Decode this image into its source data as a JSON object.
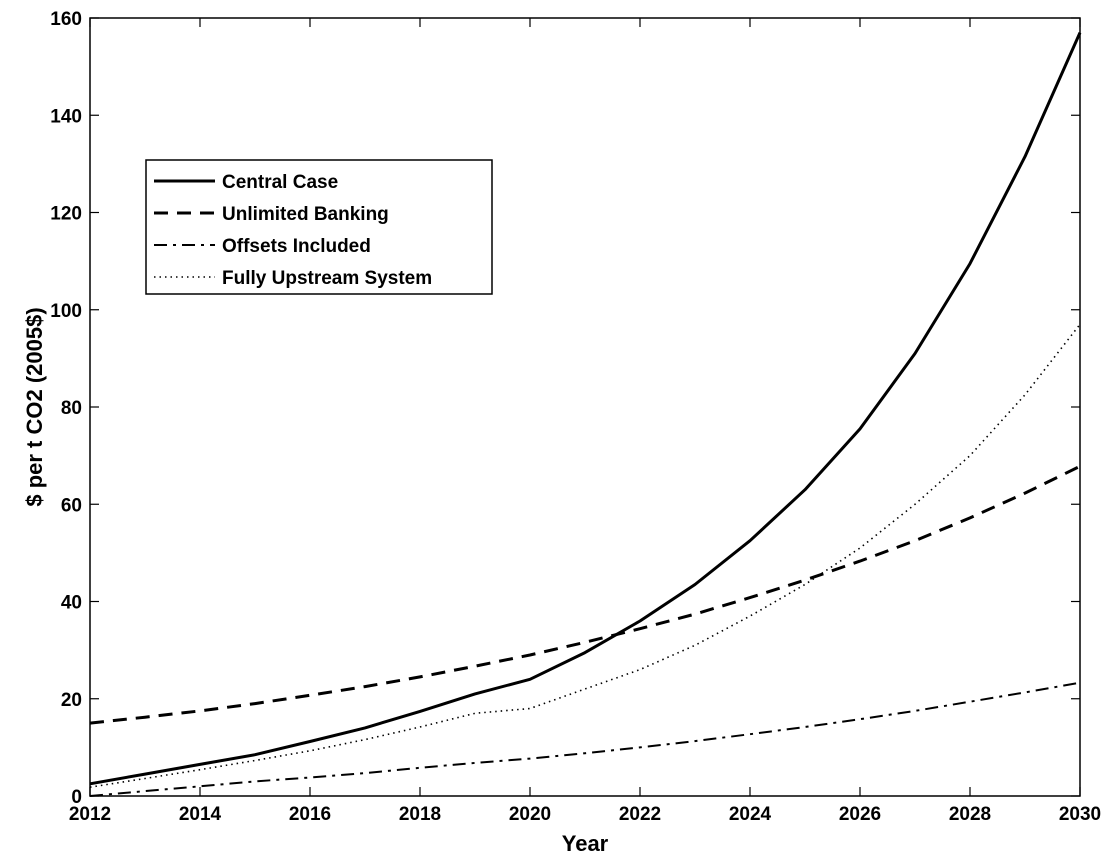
{
  "chart_data": {
    "type": "line",
    "xlabel": "Year",
    "ylabel": "$ per t CO2 (2005$)",
    "xlim": [
      2012,
      2030
    ],
    "ylim": [
      0,
      160
    ],
    "xticks": [
      2012,
      2014,
      2016,
      2018,
      2020,
      2022,
      2024,
      2026,
      2028,
      2030
    ],
    "yticks": [
      0,
      20,
      40,
      60,
      80,
      100,
      120,
      140,
      160
    ],
    "grid": false,
    "legend_position": "upper-left",
    "x": [
      2012,
      2013,
      2014,
      2015,
      2016,
      2017,
      2018,
      2019,
      2020,
      2021,
      2022,
      2023,
      2024,
      2025,
      2026,
      2027,
      2028,
      2029,
      2030
    ],
    "series": [
      {
        "name": "Central Case",
        "style": "solid",
        "values": [
          2.5,
          4.5,
          6.5,
          8.5,
          11.2,
          14,
          17.4,
          21,
          24,
          29.5,
          36,
          43.5,
          52.5,
          63,
          75.5,
          91,
          109.5,
          131.5,
          157
        ]
      },
      {
        "name": "Unlimited Banking",
        "style": "dashed",
        "values": [
          15,
          16.2,
          17.5,
          19,
          20.7,
          22.5,
          24.5,
          26.7,
          29,
          31.6,
          34.4,
          37.4,
          40.8,
          44.4,
          48.3,
          52.5,
          57.2,
          62.3,
          67.8
        ]
      },
      {
        "name": "Offsets Included",
        "style": "dashdot",
        "values": [
          0,
          1,
          2,
          3,
          3.8,
          4.7,
          5.8,
          6.8,
          7.7,
          8.8,
          10,
          11.3,
          12.7,
          14.2,
          15.8,
          17.5,
          19.4,
          21.3,
          23.3
        ]
      },
      {
        "name": "Fully Upstream System",
        "style": "dotted",
        "values": [
          1.8,
          3.6,
          5.4,
          7.3,
          9.3,
          11.6,
          14.2,
          17,
          18,
          22,
          26,
          31,
          37,
          43.5,
          51,
          60,
          70,
          82.5,
          97
        ]
      }
    ]
  }
}
